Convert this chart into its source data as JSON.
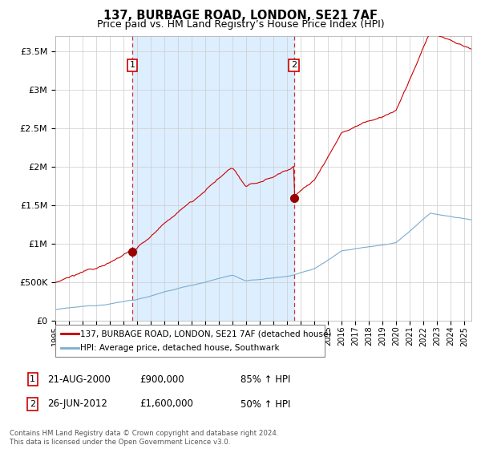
{
  "title": "137, BURBAGE ROAD, LONDON, SE21 7AF",
  "subtitle": "Price paid vs. HM Land Registry’s House Price Index (HPI)",
  "title_fontsize": 10.5,
  "subtitle_fontsize": 9,
  "ylabel_ticks": [
    "£0",
    "£500K",
    "£1M",
    "£1.5M",
    "£2M",
    "£2.5M",
    "£3M",
    "£3.5M"
  ],
  "ytick_values": [
    0,
    500000,
    1000000,
    1500000,
    2000000,
    2500000,
    3000000,
    3500000
  ],
  "ylim": [
    0,
    3700000
  ],
  "xlim_start": 1995.0,
  "xlim_end": 2025.5,
  "sale1_year": 2000.64,
  "sale1_price": 900000,
  "sale1_label": "1",
  "sale2_year": 2012.49,
  "sale2_price": 1600000,
  "sale2_label": "2",
  "red_line_color": "#cc0000",
  "blue_line_color": "#7aadcf",
  "shade_color": "#ddeeff",
  "marker_face_color": "#990000",
  "dashed_line_color": "#cc3333",
  "legend_label_red": "137, BURBAGE ROAD, LONDON, SE21 7AF (detached house)",
  "legend_label_blue": "HPI: Average price, detached house, Southwark",
  "sale1_date": "21-AUG-2000",
  "sale1_amount": "£900,000",
  "sale1_pct": "85% ↑ HPI",
  "sale2_date": "26-JUN-2012",
  "sale2_amount": "£1,600,000",
  "sale2_pct": "50% ↑ HPI",
  "footnote": "Contains HM Land Registry data © Crown copyright and database right 2024.\nThis data is licensed under the Open Government Licence v3.0.",
  "background_color": "#ffffff",
  "grid_color": "#cccccc"
}
